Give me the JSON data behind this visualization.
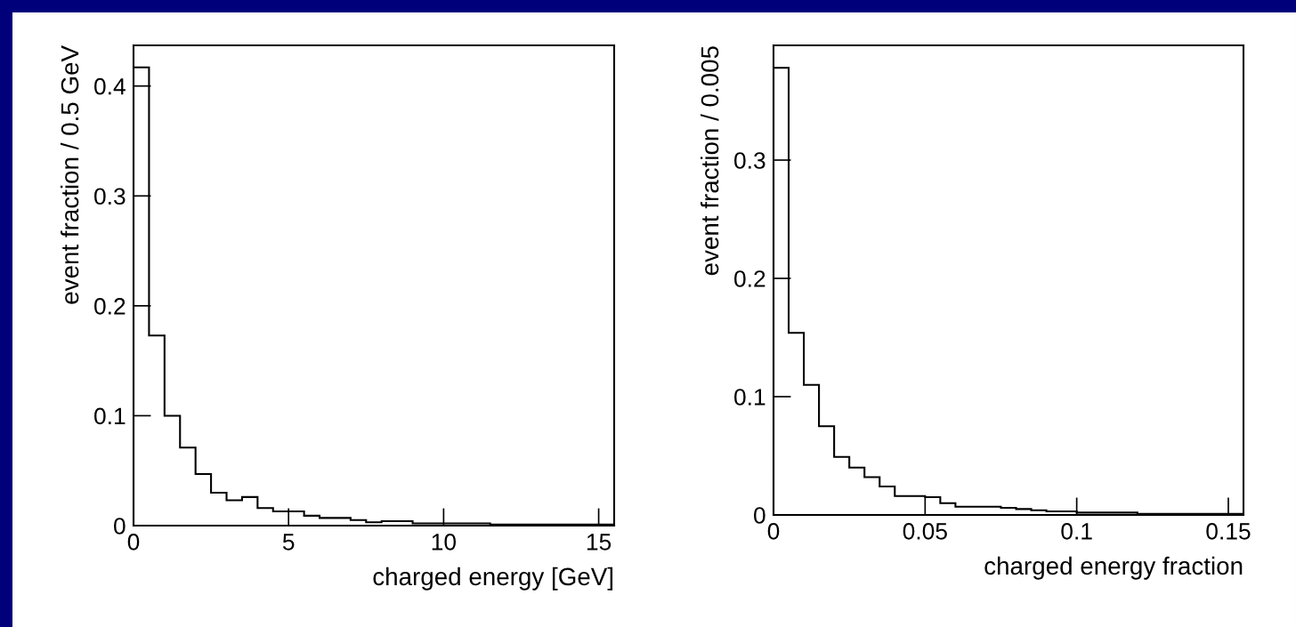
{
  "chart_data": [
    {
      "type": "histogram",
      "xlabel": "charged energy [GeV]",
      "ylabel": "event fraction / 0.5 GeV",
      "color": "#000000",
      "bins": [
        0,
        0.5,
        1,
        1.5,
        2,
        2.5,
        3,
        3.5,
        4,
        4.5,
        5,
        5.5,
        6,
        6.5,
        7,
        7.5,
        8,
        8.5,
        9,
        9.5,
        10,
        10.5,
        11,
        11.5,
        12,
        12.5,
        13,
        13.5,
        14,
        14.5,
        15,
        15.5
      ],
      "values": [
        0.417,
        0.173,
        0.1,
        0.071,
        0.047,
        0.03,
        0.023,
        0.026,
        0.016,
        0.013,
        0.013,
        0.009,
        0.007,
        0.007,
        0.005,
        0.003,
        0.004,
        0.004,
        0.002,
        0.002,
        0.002,
        0.002,
        0.002,
        0.001,
        0.001,
        0.001,
        0.001,
        0.001,
        0.001,
        0.001,
        0.001
      ],
      "xlim": [
        0,
        15.5
      ],
      "ylim": [
        0,
        0.437
      ],
      "xticks": [
        0,
        5,
        10,
        15
      ],
      "yticks": [
        0,
        0.1,
        0.2,
        0.3,
        0.4
      ]
    },
    {
      "type": "histogram",
      "xlabel": "charged energy fraction",
      "ylabel": "event fraction / 0.005",
      "color": "#000000",
      "bins": [
        0,
        0.005,
        0.01,
        0.015,
        0.02,
        0.025,
        0.03,
        0.035,
        0.04,
        0.045,
        0.05,
        0.055,
        0.06,
        0.065,
        0.07,
        0.075,
        0.08,
        0.085,
        0.09,
        0.095,
        0.1,
        0.105,
        0.11,
        0.115,
        0.12,
        0.125,
        0.13,
        0.135,
        0.14,
        0.145,
        0.15,
        0.155
      ],
      "values": [
        0.378,
        0.154,
        0.11,
        0.075,
        0.049,
        0.04,
        0.032,
        0.024,
        0.016,
        0.016,
        0.015,
        0.01,
        0.007,
        0.007,
        0.007,
        0.006,
        0.005,
        0.004,
        0.003,
        0.003,
        0.002,
        0.002,
        0.002,
        0.002,
        0.001,
        0.001,
        0.001,
        0.001,
        0.001,
        0.001,
        0.001
      ],
      "xlim": [
        0,
        0.155
      ],
      "ylim": [
        0,
        0.397
      ],
      "xticks": [
        0,
        0.05,
        0.1,
        0.15
      ],
      "yticks": [
        0,
        0.1,
        0.2,
        0.3
      ]
    }
  ]
}
